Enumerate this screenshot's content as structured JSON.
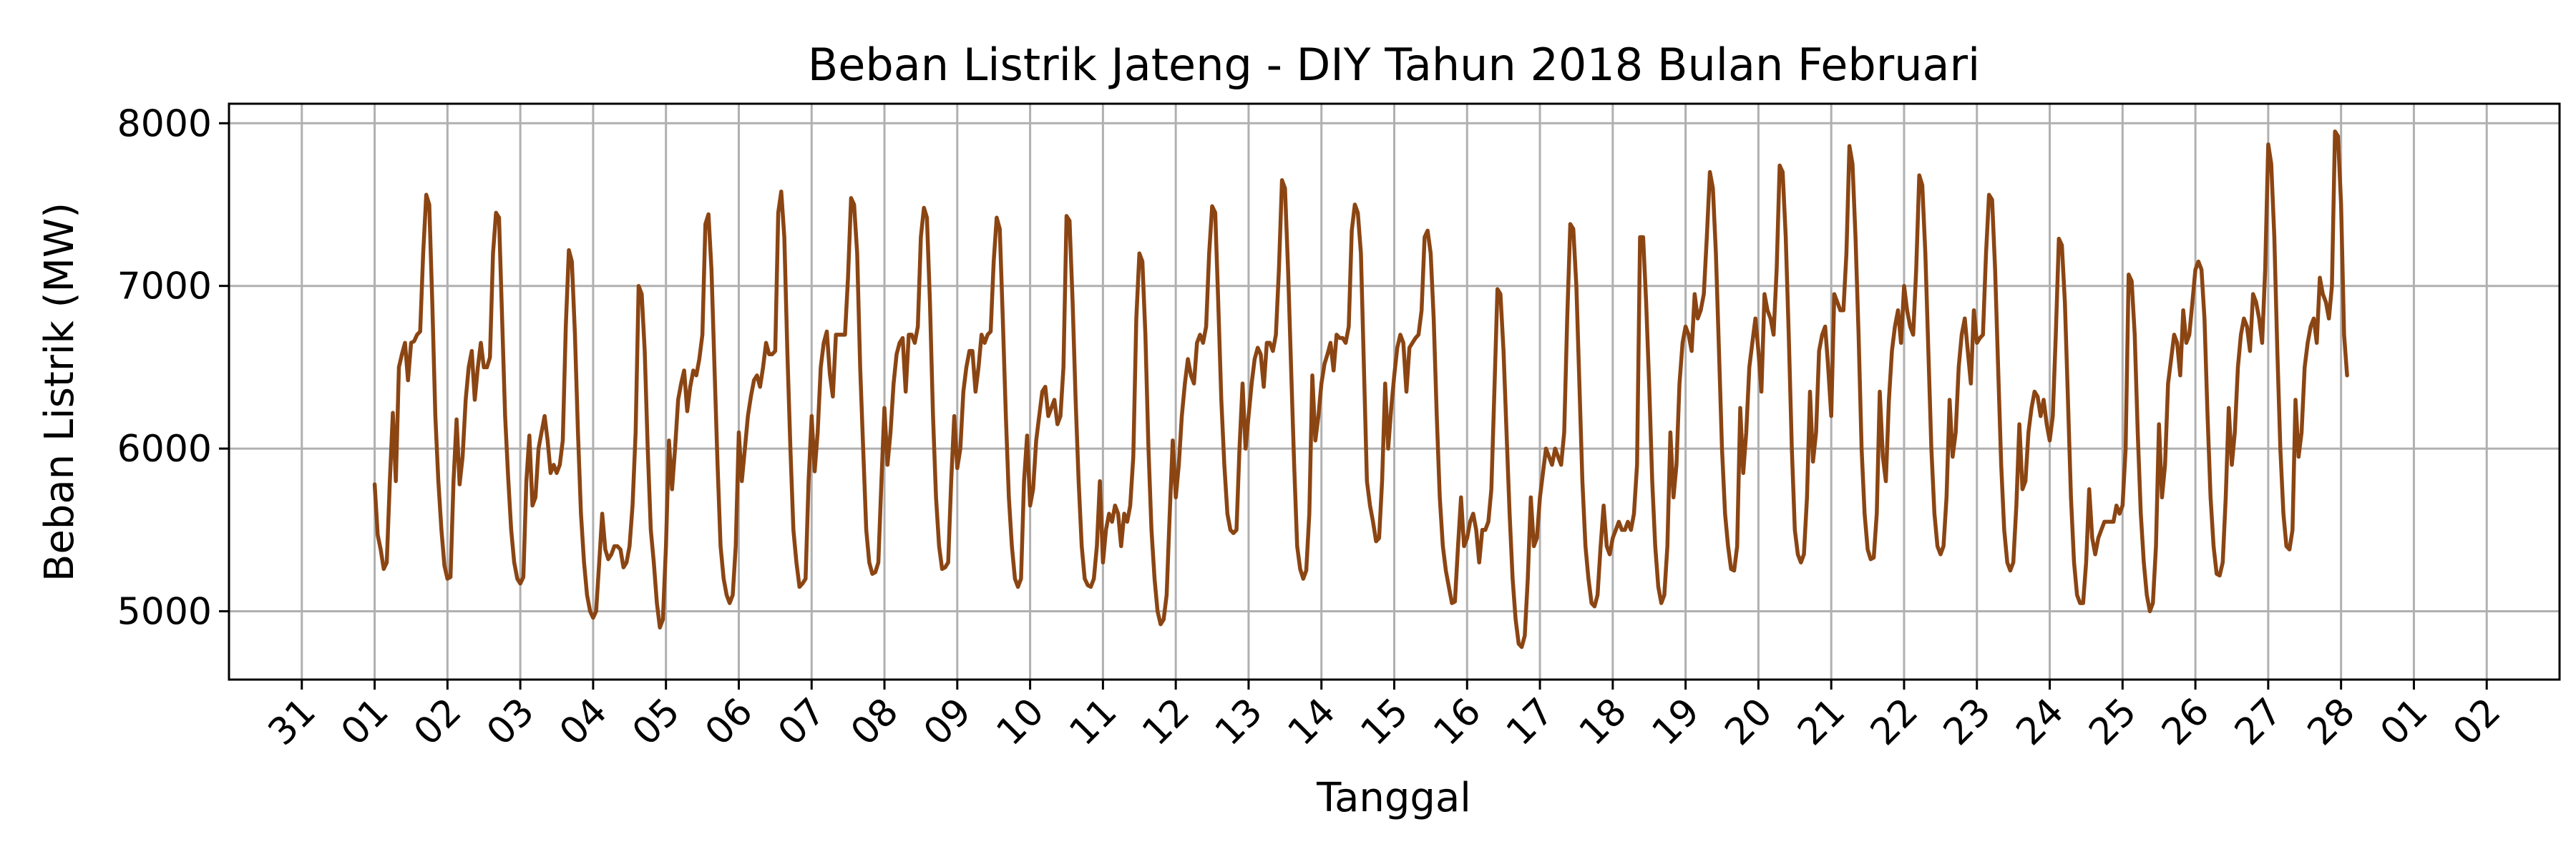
{
  "chart_data": {
    "type": "line",
    "title": "Beban Listrik Jateng - DIY Tahun 2018 Bulan Februari",
    "xlabel": "Tanggal",
    "ylabel": "Beban Listrik (MW)",
    "x_tick_labels": [
      "31",
      "01",
      "02",
      "03",
      "04",
      "05",
      "06",
      "07",
      "08",
      "09",
      "10",
      "11",
      "12",
      "13",
      "14",
      "15",
      "16",
      "17",
      "18",
      "19",
      "20",
      "21",
      "22",
      "23",
      "24",
      "25",
      "26",
      "27",
      "28",
      "01",
      "02"
    ],
    "y_ticks": [
      5000,
      6000,
      7000,
      8000
    ],
    "xlim": [
      "2018-01-31",
      "2018-03-02"
    ],
    "ylim": [
      4580,
      8120
    ],
    "grid": true,
    "line_color": "#8b4513",
    "series": [
      {
        "x_start": "2018-02-01 00:00",
        "x_step": "1 hour",
        "values": [
          5780,
          5470,
          5380,
          5260,
          5300,
          5800,
          6220,
          5800,
          6500,
          6580,
          6650,
          6420,
          6650,
          6660,
          6700,
          6720,
          7200,
          7560,
          7500,
          6900,
          6200,
          5800,
          5500,
          5280,
          5200,
          5210,
          5800,
          6180,
          5780,
          5950,
          6300,
          6500,
          6600,
          6300,
          6500,
          6650,
          6500,
          6500,
          6560,
          7200,
          7450,
          7420,
          6800,
          6200,
          5820,
          5500,
          5300,
          5200,
          5170,
          5210,
          5800,
          6080,
          5650,
          5700,
          6000,
          6100,
          6200,
          6050,
          5850,
          5900,
          5850,
          5900,
          6050,
          6750,
          7220,
          7150,
          6700,
          6100,
          5600,
          5300,
          5100,
          5000,
          4960,
          5000,
          5300,
          5600,
          5380,
          5320,
          5350,
          5400,
          5400,
          5380,
          5270,
          5300,
          5400,
          5650,
          6100,
          7000,
          6950,
          6600,
          6000,
          5500,
          5300,
          5050,
          4900,
          4950,
          5400,
          6050,
          5750,
          6000,
          6300,
          6400,
          6480,
          6230,
          6380,
          6480,
          6450,
          6550,
          6700,
          7380,
          7440,
          7100,
          6500,
          5900,
          5400,
          5200,
          5100,
          5050,
          5100,
          5400,
          6100,
          5800,
          6000,
          6200,
          6320,
          6420,
          6450,
          6380,
          6500,
          6650,
          6580,
          6580,
          6600,
          7450,
          7580,
          7300,
          6600,
          6000,
          5500,
          5300,
          5150,
          5170,
          5200,
          5800,
          6200,
          5860,
          6100,
          6500,
          6650,
          6720,
          6460,
          6320,
          6700,
          6700,
          6700,
          6700,
          7050,
          7540,
          7500,
          7200,
          6500,
          6000,
          5500,
          5300,
          5230,
          5240,
          5300,
          5800,
          6250,
          5900,
          6100,
          6400,
          6580,
          6650,
          6680,
          6350,
          6700,
          6700,
          6650,
          6750,
          7300,
          7480,
          7420,
          6900,
          6200,
          5700,
          5400,
          5260,
          5270,
          5300,
          5800,
          6200,
          5880,
          6000,
          6350,
          6500,
          6600,
          6600,
          6350,
          6500,
          6700,
          6650,
          6700,
          6720,
          7150,
          7420,
          7350,
          6800,
          6200,
          5700,
          5400,
          5200,
          5150,
          5200,
          5800,
          6080,
          5650,
          5750,
          6050,
          6200,
          6350,
          6380,
          6200,
          6250,
          6300,
          6150,
          6200,
          6500,
          7430,
          7400,
          6900,
          6300,
          5800,
          5400,
          5200,
          5160,
          5150,
          5200,
          5400,
          5800,
          5300,
          5500,
          5600,
          5550,
          5650,
          5600,
          5400,
          5600,
          5550,
          5650,
          5950,
          6800,
          7200,
          7150,
          6700,
          6000,
          5500,
          5200,
          5000,
          4920,
          4950,
          5100,
          5600,
          6050,
          5700,
          5900,
          6200,
          6400,
          6550,
          6450,
          6400,
          6650,
          6700,
          6650,
          6750,
          7200,
          7490,
          7450,
          6900,
          6300,
          5900,
          5600,
          5500,
          5480,
          5500,
          6000,
          6400,
          6000,
          6200,
          6400,
          6550,
          6620,
          6580,
          6380,
          6650,
          6650,
          6600,
          6700,
          7100,
          7650,
          7600,
          7100,
          6500,
          5900,
          5400,
          5260,
          5200,
          5250,
          5600,
          6450,
          6050,
          6200,
          6400,
          6520,
          6580,
          6650,
          6480,
          6700,
          6680,
          6680,
          6650,
          6750,
          7340,
          7500,
          7450,
          7200,
          6500,
          5800,
          5650,
          5550,
          5430,
          5450,
          5800,
          6400,
          6000,
          6250,
          6450,
          6620,
          6700,
          6650,
          6350,
          6620,
          6650,
          6680,
          6700,
          6850,
          7300,
          7340,
          7200,
          6800,
          6200,
          5700,
          5400,
          5250,
          5150,
          5050,
          5060,
          5400,
          5700,
          5400,
          5450,
          5550,
          5600,
          5500,
          5300,
          5500,
          5500,
          5550,
          5750,
          6350,
          6980,
          6950,
          6600,
          6100,
          5600,
          5200,
          4950,
          4800,
          4780,
          4850,
          5200,
          5700,
          5400,
          5450,
          5700,
          5850,
          6000,
          5950,
          5900,
          6000,
          5950,
          5900,
          6100,
          6800,
          7380,
          7350,
          7000,
          6400,
          5800,
          5400,
          5200,
          5050,
          5030,
          5100,
          5400,
          5650,
          5400,
          5350,
          5450,
          5500,
          5550,
          5500,
          5500,
          5550,
          5500,
          5600,
          5900,
          7300,
          7300,
          6900,
          6400,
          5800,
          5400,
          5150,
          5050,
          5100,
          5400,
          6100,
          5700,
          5900,
          6400,
          6650,
          6750,
          6700,
          6600,
          6950,
          6800,
          6850,
          6950,
          7300,
          7700,
          7600,
          7200,
          6600,
          6000,
          5600,
          5400,
          5260,
          5250,
          5400,
          6250,
          5850,
          6100,
          6500,
          6650,
          6800,
          6600,
          6350,
          6950,
          6850,
          6800,
          6700,
          7100,
          7740,
          7700,
          7300,
          6700,
          6000,
          5500,
          5350,
          5300,
          5350,
          5700,
          6350,
          5920,
          6100,
          6600,
          6700,
          6750,
          6500,
          6200,
          6950,
          6900,
          6850,
          6850,
          7200,
          7860,
          7750,
          7300,
          6700,
          6000,
          5600,
          5380,
          5320,
          5330,
          5600,
          6350,
          5950,
          5800,
          6300,
          6600,
          6750,
          6850,
          6650,
          7000,
          6850,
          6750,
          6700,
          7100,
          7680,
          7620,
          7200,
          6600,
          6000,
          5600,
          5400,
          5350,
          5400,
          5700,
          6300,
          5950,
          6100,
          6500,
          6700,
          6800,
          6600,
          6400,
          6850,
          6650,
          6680,
          6700,
          7200,
          7560,
          7530,
          7100,
          6500,
          5900,
          5500,
          5300,
          5250,
          5300,
          5650,
          6150,
          5750,
          5800,
          6100,
          6250,
          6350,
          6320,
          6200,
          6300,
          6150,
          6050,
          6200,
          6700,
          7290,
          7250,
          6900,
          6300,
          5700,
          5300,
          5100,
          5050,
          5050,
          5300,
          5750,
          5450,
          5350,
          5450,
          5500,
          5550,
          5550,
          5550,
          5550,
          5650,
          5600,
          5650,
          6000,
          7070,
          7030,
          6700,
          6100,
          5600,
          5300,
          5100,
          5000,
          5050,
          5400,
          6150,
          5700,
          5900,
          6400,
          6550,
          6700,
          6650,
          6450,
          6850,
          6650,
          6700,
          6900,
          7100,
          7150,
          7100,
          6800,
          6200,
          5700,
          5400,
          5230,
          5220,
          5300,
          5700,
          6250,
          5900,
          6100,
          6500,
          6700,
          6800,
          6750,
          6600,
          6950,
          6900,
          6800,
          6650,
          7100,
          7870,
          7750,
          7300,
          6600,
          6000,
          5600,
          5400,
          5380,
          5500,
          6300,
          5950,
          6100,
          6500,
          6650,
          6750,
          6800,
          6650,
          7050,
          6950,
          6900,
          6800,
          7000,
          7950,
          7920,
          7500,
          6700,
          6450
        ]
      }
    ]
  }
}
